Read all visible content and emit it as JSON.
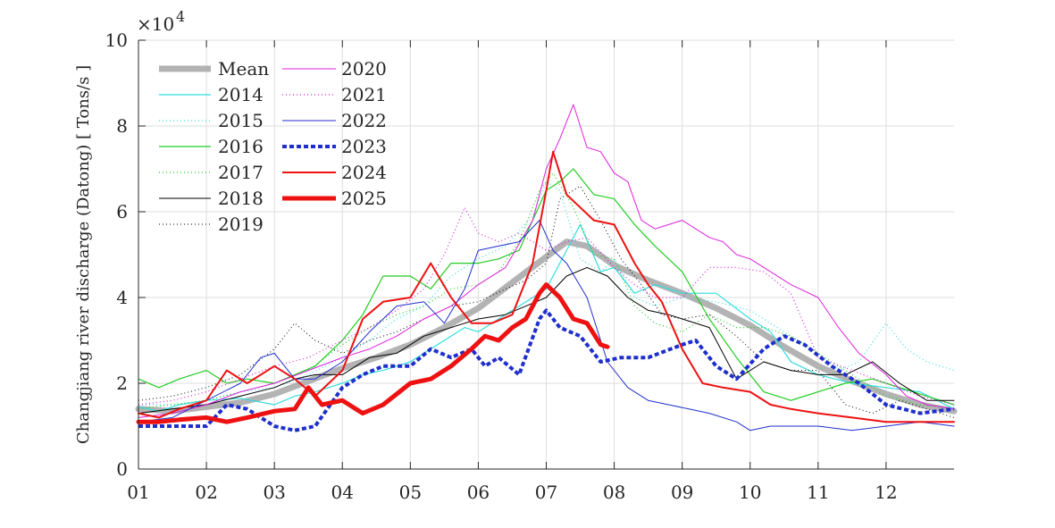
{
  "chart_data": {
    "type": "line",
    "ylabel": "Changjiang river discharge (Datong) [ Tons/s ]",
    "xlabel": "",
    "y_exponent_label": "×10",
    "y_exponent_power": "4",
    "ylim": [
      0,
      10
    ],
    "xlim": [
      1,
      13
    ],
    "yticks": [
      0,
      2,
      4,
      6,
      8,
      10
    ],
    "ytick_labels": [
      "0",
      "2",
      "4",
      "6",
      "8",
      "10"
    ],
    "xticks": [
      1,
      2,
      3,
      4,
      5,
      6,
      7,
      8,
      9,
      10,
      11,
      12
    ],
    "xtick_labels": [
      "01",
      "02",
      "03",
      "04",
      "05",
      "06",
      "07",
      "08",
      "09",
      "10",
      "11",
      "12"
    ],
    "grid": true,
    "legend_position": "top-left (two columns)",
    "series": [
      {
        "name": "Mean",
        "color": "#b3b3b3",
        "width": 7,
        "dash": "solid",
        "x": [
          1,
          1.5,
          2,
          2.5,
          3,
          3.5,
          4,
          4.5,
          5,
          5.5,
          6,
          6.5,
          7,
          7.3,
          7.6,
          8,
          8.5,
          9,
          9.5,
          10,
          10.5,
          11,
          11.5,
          12,
          12.5,
          13
        ],
        "y": [
          1.4,
          1.35,
          1.45,
          1.55,
          1.75,
          2.05,
          2.35,
          2.6,
          2.9,
          3.3,
          3.75,
          4.35,
          4.95,
          5.3,
          5.2,
          4.75,
          4.4,
          4.1,
          3.75,
          3.35,
          2.85,
          2.4,
          2.05,
          1.75,
          1.5,
          1.35
        ]
      },
      {
        "name": "2014",
        "color": "#33dddd",
        "width": 1.2,
        "dash": "solid",
        "x": [
          1,
          1.3,
          1.6,
          2,
          2.5,
          3,
          3.3,
          3.6,
          4,
          4.3,
          4.6,
          5,
          5.4,
          5.8,
          6,
          6.3,
          6.6,
          7,
          7.2,
          7.5,
          7.8,
          8,
          8.3,
          8.6,
          9,
          9.5,
          10,
          10.3,
          10.6,
          11,
          11.5,
          12,
          12.5,
          13
        ],
        "y": [
          1.45,
          1.35,
          1.5,
          1.6,
          1.65,
          1.5,
          1.7,
          1.8,
          2.0,
          2.2,
          2.3,
          2.5,
          2.9,
          3.3,
          3.2,
          3.5,
          3.8,
          4.2,
          4.8,
          5.7,
          4.6,
          4.7,
          4.1,
          4.3,
          4.1,
          4.1,
          3.5,
          3.2,
          2.5,
          2.2,
          2.0,
          1.9,
          1.8,
          1.4
        ]
      },
      {
        "name": "2015",
        "color": "#33dddd",
        "width": 1.2,
        "dash": "1,3",
        "x": [
          1,
          1.5,
          2,
          2.5,
          3,
          3.5,
          4,
          4.4,
          4.8,
          5.2,
          5.6,
          6,
          6.4,
          6.8,
          7,
          7.2,
          7.5,
          7.8,
          8,
          8.3,
          8.6,
          9,
          9.5,
          10,
          10.5,
          11,
          11.3,
          11.6,
          12,
          12.3,
          12.6,
          13
        ],
        "y": [
          1.5,
          1.5,
          1.6,
          1.8,
          1.9,
          2.2,
          2.6,
          3.0,
          3.5,
          3.8,
          4.5,
          4.9,
          5.2,
          5.9,
          6.7,
          6.5,
          4.9,
          4.6,
          4.9,
          4.0,
          3.8,
          4.0,
          3.9,
          3.7,
          3.2,
          2.7,
          2.3,
          2.5,
          3.4,
          2.8,
          2.5,
          2.3
        ]
      },
      {
        "name": "2016",
        "color": "#22cc22",
        "width": 1.2,
        "dash": "solid",
        "x": [
          1,
          1.3,
          1.6,
          2,
          2.3,
          2.6,
          3,
          3.3,
          3.6,
          4,
          4.3,
          4.6,
          5,
          5.3,
          5.6,
          6,
          6.3,
          6.6,
          7,
          7.2,
          7.4,
          7.7,
          8,
          8.3,
          8.6,
          9,
          9.4,
          9.8,
          10.2,
          10.6,
          11,
          11.4,
          11.8,
          12.2,
          12.6,
          13
        ],
        "y": [
          2.1,
          1.9,
          2.1,
          2.3,
          2.0,
          2.1,
          2.0,
          2.2,
          2.4,
          3.0,
          3.6,
          4.5,
          4.5,
          4.2,
          4.8,
          4.8,
          4.9,
          5.1,
          6.5,
          6.7,
          7.0,
          6.4,
          6.3,
          5.7,
          5.2,
          4.6,
          3.5,
          2.6,
          1.8,
          1.6,
          1.8,
          2.0,
          2.1,
          1.9,
          1.7,
          1.5
        ]
      },
      {
        "name": "2017",
        "color": "#22cc22",
        "width": 1.2,
        "dash": "1,3",
        "x": [
          1,
          1.5,
          2,
          2.5,
          3,
          3.5,
          4,
          4.4,
          4.8,
          5.2,
          5.6,
          6,
          6.3,
          6.6,
          6.9,
          7.1,
          7.4,
          7.7,
          8,
          8.3,
          8.6,
          9,
          9.4,
          9.8,
          10.2,
          10.6,
          11,
          11.5,
          12,
          12.5,
          13
        ],
        "y": [
          1.4,
          1.5,
          1.6,
          1.8,
          2.0,
          2.3,
          2.9,
          3.3,
          3.6,
          3.8,
          4.2,
          4.3,
          4.6,
          5.3,
          6.5,
          6.9,
          6.1,
          5.0,
          4.9,
          3.8,
          3.4,
          3.2,
          3.6,
          3.3,
          3.3,
          3.1,
          2.7,
          2.2,
          1.7,
          1.5,
          1.4
        ]
      },
      {
        "name": "2018",
        "color": "#000000",
        "width": 1.0,
        "dash": "solid",
        "x": [
          1,
          1.5,
          2,
          2.5,
          3,
          3.3,
          3.6,
          4,
          4.4,
          4.8,
          5.2,
          5.6,
          6,
          6.4,
          6.7,
          7,
          7.3,
          7.6,
          7.9,
          8.2,
          8.5,
          8.8,
          9,
          9.4,
          9.8,
          10.2,
          10.6,
          11,
          11.4,
          11.8,
          12.2,
          12.6,
          13
        ],
        "y": [
          1.3,
          1.4,
          1.5,
          1.7,
          1.9,
          2.1,
          2.2,
          2.2,
          2.6,
          2.7,
          3.1,
          3.3,
          3.5,
          3.6,
          3.8,
          4.0,
          4.5,
          4.7,
          4.5,
          4.0,
          3.7,
          3.6,
          3.5,
          3.3,
          2.1,
          2.5,
          2.3,
          2.2,
          2.2,
          2.5,
          2.0,
          1.6,
          1.6
        ]
      },
      {
        "name": "2019",
        "color": "#000000",
        "width": 1.0,
        "dash": "1,3",
        "x": [
          1,
          1.5,
          2,
          2.5,
          3,
          3.3,
          3.6,
          4,
          4.4,
          4.8,
          5.2,
          5.6,
          6,
          6.4,
          6.7,
          7,
          7.2,
          7.5,
          7.8,
          8.1,
          8.4,
          8.7,
          9,
          9.4,
          9.8,
          10.2,
          10.6,
          11,
          11.4,
          11.8,
          12.2,
          12.6,
          13
        ],
        "y": [
          1.6,
          1.7,
          1.9,
          2.2,
          2.8,
          3.4,
          3.0,
          2.7,
          3.0,
          3.2,
          3.5,
          3.8,
          3.9,
          4.2,
          4.4,
          4.8,
          6.3,
          6.6,
          5.8,
          4.9,
          4.3,
          3.6,
          3.5,
          3.6,
          3.1,
          2.5,
          2.3,
          2.3,
          1.5,
          1.3,
          1.6,
          1.4,
          1.2
        ]
      },
      {
        "name": "2020",
        "color": "#dd22dd",
        "width": 1.0,
        "dash": "solid",
        "x": [
          1,
          1.5,
          2,
          2.5,
          3,
          3.5,
          4,
          4.4,
          4.8,
          5.2,
          5.6,
          6,
          6.4,
          6.8,
          7.0,
          7.2,
          7.4,
          7.6,
          7.8,
          8.0,
          8.2,
          8.4,
          8.6,
          8.8,
          9.0,
          9.2,
          9.4,
          9.6,
          9.8,
          10,
          10.3,
          10.6,
          11,
          11.3,
          11.6,
          12,
          12.3,
          12.6,
          13
        ],
        "y": [
          1.2,
          1.3,
          1.5,
          1.8,
          2.0,
          2.3,
          2.6,
          2.8,
          3.1,
          3.5,
          3.8,
          4.3,
          4.7,
          5.8,
          7.0,
          7.7,
          8.5,
          7.5,
          7.4,
          6.9,
          6.7,
          5.8,
          5.6,
          5.7,
          5.8,
          5.6,
          5.4,
          5.3,
          5.0,
          4.9,
          4.6,
          4.3,
          4.0,
          3.3,
          2.7,
          2.2,
          1.7,
          1.5,
          1.4
        ]
      },
      {
        "name": "2021",
        "color": "#dd22dd",
        "width": 1.2,
        "dash": "1,3",
        "x": [
          1,
          1.5,
          2,
          2.5,
          3,
          3.5,
          4,
          4.4,
          4.8,
          5.2,
          5.5,
          5.8,
          6.0,
          6.3,
          6.6,
          7,
          7.3,
          7.6,
          8,
          8.3,
          8.6,
          9,
          9.4,
          9.8,
          10.2,
          10.6,
          11,
          11.5,
          12,
          12.5,
          13
        ],
        "y": [
          1.5,
          1.6,
          1.8,
          2.1,
          2.4,
          2.6,
          3.0,
          3.3,
          3.7,
          4.2,
          5.0,
          6.1,
          5.5,
          5.3,
          5.5,
          5.1,
          5.3,
          5.4,
          4.7,
          4.3,
          4.0,
          4.0,
          4.7,
          4.7,
          4.6,
          4.1,
          2.6,
          2.3,
          2.0,
          1.7,
          1.5
        ]
      },
      {
        "name": "2022",
        "color": "#1f2fcc",
        "width": 1.0,
        "dash": "solid",
        "x": [
          1,
          1.5,
          2,
          2.5,
          2.8,
          3.0,
          3.3,
          3.6,
          4,
          4.4,
          4.8,
          5.2,
          5.5,
          5.8,
          6.0,
          6.3,
          6.6,
          6.9,
          7.1,
          7.3,
          7.6,
          7.9,
          8.2,
          8.5,
          8.8,
          9.1,
          9.4,
          9.8,
          10,
          10.3,
          10.6,
          11,
          11.5,
          12,
          12.5,
          13
        ],
        "y": [
          1.1,
          1.2,
          1.6,
          2.0,
          2.6,
          2.7,
          2.1,
          2.1,
          2.5,
          3.2,
          3.8,
          3.9,
          3.4,
          4.2,
          5.1,
          5.2,
          5.3,
          5.8,
          5.1,
          4.8,
          4.0,
          2.5,
          1.9,
          1.6,
          1.5,
          1.4,
          1.3,
          1.1,
          0.9,
          1.0,
          1.0,
          1.0,
          0.9,
          1.0,
          1.1,
          1.0
        ]
      },
      {
        "name": "2023",
        "color": "#1f2fcc",
        "width": 4,
        "dash": "5,3",
        "x": [
          1,
          1.5,
          2,
          2.3,
          2.6,
          3,
          3.3,
          3.6,
          4,
          4.3,
          4.6,
          5,
          5.3,
          5.6,
          5.9,
          6.1,
          6.3,
          6.6,
          6.9,
          7.0,
          7.2,
          7.5,
          7.8,
          8.1,
          8.5,
          9,
          9.2,
          9.5,
          9.8,
          10.2,
          10.5,
          10.8,
          11.2,
          11.6,
          12,
          12.5,
          13
        ],
        "y": [
          1.0,
          1.0,
          1.0,
          1.5,
          1.4,
          1.0,
          0.9,
          1.0,
          1.9,
          2.2,
          2.4,
          2.4,
          2.8,
          2.6,
          2.8,
          2.4,
          2.6,
          2.2,
          3.5,
          3.7,
          3.3,
          3.1,
          2.5,
          2.6,
          2.6,
          2.9,
          3.0,
          2.4,
          2.1,
          2.8,
          3.1,
          2.9,
          2.4,
          2.0,
          1.5,
          1.3,
          1.4
        ]
      },
      {
        "name": "2024",
        "color": "#ee1111",
        "width": 2,
        "dash": "solid",
        "x": [
          1,
          1.3,
          1.6,
          2,
          2.3,
          2.6,
          3,
          3.3,
          3.6,
          4,
          4.3,
          4.6,
          5,
          5.3,
          5.6,
          5.9,
          6.2,
          6.5,
          6.8,
          7.0,
          7.1,
          7.3,
          7.5,
          7.7,
          8.0,
          8.3,
          8.5,
          8.7,
          9,
          9.3,
          9.6,
          10,
          10.3,
          10.6,
          11,
          11.5,
          12,
          12.5,
          13
        ],
        "y": [
          1.3,
          1.2,
          1.4,
          1.6,
          2.3,
          2.0,
          2.4,
          2.1,
          1.7,
          2.3,
          3.5,
          3.9,
          4.0,
          4.8,
          4.0,
          3.4,
          3.4,
          3.6,
          4.8,
          6.5,
          7.4,
          6.4,
          6.1,
          5.8,
          5.7,
          4.8,
          4.3,
          3.9,
          2.8,
          2.0,
          1.9,
          1.8,
          1.5,
          1.4,
          1.3,
          1.2,
          1.1,
          1.1,
          1.1
        ]
      },
      {
        "name": "2025",
        "color": "#ee1111",
        "width": 5,
        "dash": "solid",
        "x": [
          1,
          1.3,
          1.6,
          2,
          2.3,
          2.6,
          3,
          3.3,
          3.5,
          3.7,
          4,
          4.3,
          4.6,
          5,
          5.3,
          5.6,
          5.9,
          6.1,
          6.3,
          6.5,
          6.7,
          6.9,
          7.0,
          7.2,
          7.4,
          7.6,
          7.8,
          7.9
        ],
        "y": [
          1.1,
          1.1,
          1.15,
          1.2,
          1.1,
          1.2,
          1.35,
          1.4,
          1.9,
          1.5,
          1.6,
          1.3,
          1.5,
          2.0,
          2.1,
          2.4,
          2.8,
          3.1,
          3.0,
          3.3,
          3.5,
          4.1,
          4.3,
          4.0,
          3.5,
          3.4,
          2.9,
          2.85
        ]
      }
    ]
  }
}
